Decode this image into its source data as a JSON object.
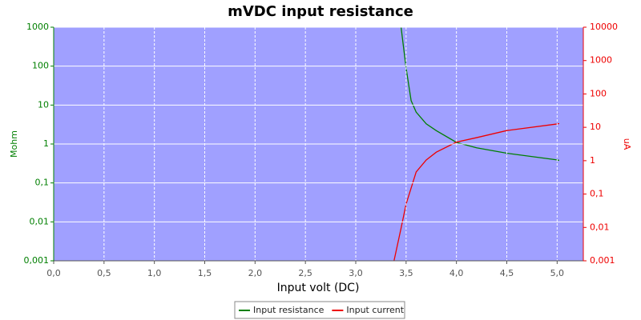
{
  "chart_data": {
    "type": "line",
    "title": "mVDC input resistance",
    "xlabel": "Input volt (DC)",
    "ylabel": "Mohm",
    "y2label": "uA",
    "yscale": "log",
    "y2scale": "log",
    "grid": true,
    "legend": "bottom",
    "xlim": [
      0,
      5.26
    ],
    "xticks": [
      {
        "value": 0,
        "label": "0,0"
      },
      {
        "value": 0.5,
        "label": "0,5"
      },
      {
        "value": 1,
        "label": "1,0"
      },
      {
        "value": 1.5,
        "label": "1,5"
      },
      {
        "value": 2,
        "label": "2,0"
      },
      {
        "value": 2.5,
        "label": "2,5"
      },
      {
        "value": 3,
        "label": "3,0"
      },
      {
        "value": 3.5,
        "label": "3,5"
      },
      {
        "value": 4,
        "label": "4,0"
      },
      {
        "value": 4.5,
        "label": "4,5"
      },
      {
        "value": 5,
        "label": "5,0"
      }
    ],
    "ylim": [
      0.001,
      1000
    ],
    "yticks": [
      {
        "value": 0.001,
        "label": "0,001"
      },
      {
        "value": 0.01,
        "label": "0,01"
      },
      {
        "value": 0.1,
        "label": "0,1"
      },
      1,
      10,
      100,
      1000
    ],
    "y2lim": [
      0.001,
      10000
    ],
    "y2ticks": [
      {
        "value": 0.001,
        "label": "0,001"
      },
      {
        "value": 0.01,
        "label": "0,01"
      },
      {
        "value": 0.1,
        "label": "0,1"
      },
      1,
      10,
      100,
      1000,
      10000
    ],
    "series": [
      {
        "name": "Input resistance",
        "color": "#007f00",
        "x": [
          3.45,
          3.5,
          3.55,
          3.6,
          3.7,
          3.8,
          4.0,
          4.2,
          4.5,
          5.0,
          5.02
        ],
        "values": [
          1000,
          90,
          13,
          6.6,
          3.3,
          2.2,
          1.1,
          0.8,
          0.58,
          0.39,
          0.38
        ]
      },
      {
        "name": "Input current",
        "color": "#ee0000",
        "axis": "y2",
        "x": [
          3.38,
          3.45,
          3.5,
          3.6,
          3.7,
          3.8,
          4.0,
          4.2,
          4.5,
          5.0,
          5.02
        ],
        "values": [
          0.001,
          0.0095,
          0.05,
          0.46,
          1.05,
          1.8,
          3.6,
          4.9,
          8,
          12.6,
          13
        ]
      }
    ]
  }
}
